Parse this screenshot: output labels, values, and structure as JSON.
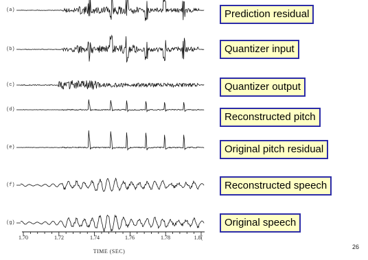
{
  "traces": [
    {
      "id": "a",
      "label": "(a)",
      "kind": "residual",
      "seed": 11,
      "amp": 0.9
    },
    {
      "id": "b",
      "label": "(b)",
      "kind": "residual",
      "seed": 23,
      "amp": 1.0
    },
    {
      "id": "c",
      "label": "(c)",
      "kind": "quantizer",
      "seed": 37,
      "amp": 0.5
    },
    {
      "id": "d",
      "label": "(d)",
      "kind": "pitch",
      "seed": 41,
      "amp": 0.6
    },
    {
      "id": "e",
      "label": "(e)",
      "kind": "pitch",
      "seed": 53,
      "amp": 1.0
    },
    {
      "id": "f",
      "label": "(f)",
      "kind": "speech",
      "seed": 61,
      "amp": 0.8
    },
    {
      "id": "g",
      "label": "(g)",
      "kind": "speech",
      "seed": 71,
      "amp": 1.0
    }
  ],
  "boxes": [
    "Prediction residual",
    "Quantizer input",
    "Quantizer output",
    "Reconstructed pitch",
    "Original pitch residual",
    "Reconstructed speech",
    "Original speech"
  ],
  "axis": {
    "ticks": [
      "1.70",
      "1.72",
      "1.74",
      "1.76",
      "1.78",
      "1.8("
    ],
    "title": "TIME (SEC)"
  },
  "page_number": "26",
  "colors": {
    "box_border": "#2b2ba8",
    "box_fill": "#ffffc4",
    "ink": "#111111"
  }
}
